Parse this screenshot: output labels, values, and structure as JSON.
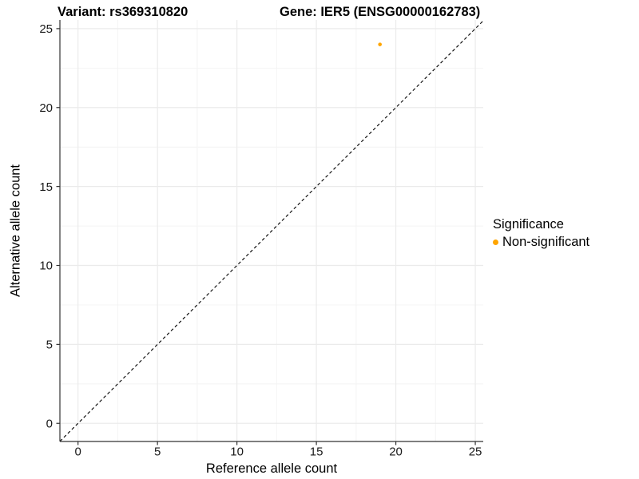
{
  "titles": {
    "left": "Variant: rs369310820",
    "right": "Gene: IER5 (ENSG00000162783)"
  },
  "chart_data": {
    "type": "scatter",
    "title": "Variant: rs369310820   Gene: IER5 (ENSG00000162783)",
    "xlabel": "Reference allele count",
    "ylabel": "Alternative allele count",
    "points": [
      {
        "x": 19,
        "y": 24,
        "series": "Non-significant"
      }
    ],
    "x_ticks": [
      0,
      5,
      10,
      15,
      20,
      25
    ],
    "y_ticks": [
      0,
      5,
      10,
      15,
      20,
      25
    ],
    "minor_ticks": [
      2.5,
      7.5,
      12.5,
      17.5,
      22.5
    ],
    "xlim": [
      -1.14,
      25.5
    ],
    "ylim": [
      -1.15,
      25.55
    ],
    "grid": "major+minor",
    "reference_line": {
      "type": "identity y=x",
      "style": "dashed",
      "color": "#000000"
    },
    "legend": {
      "title": "Significance",
      "position": "right",
      "items": [
        {
          "label": "Non-significant",
          "color": "#FFA500"
        }
      ]
    }
  },
  "colors": {
    "point": "#FFA500",
    "grid_major": "#EBEBEB",
    "grid_minor": "#F4F4F4",
    "axis_line": "#333333",
    "background": "#FFFFFF",
    "text": "#000000"
  }
}
